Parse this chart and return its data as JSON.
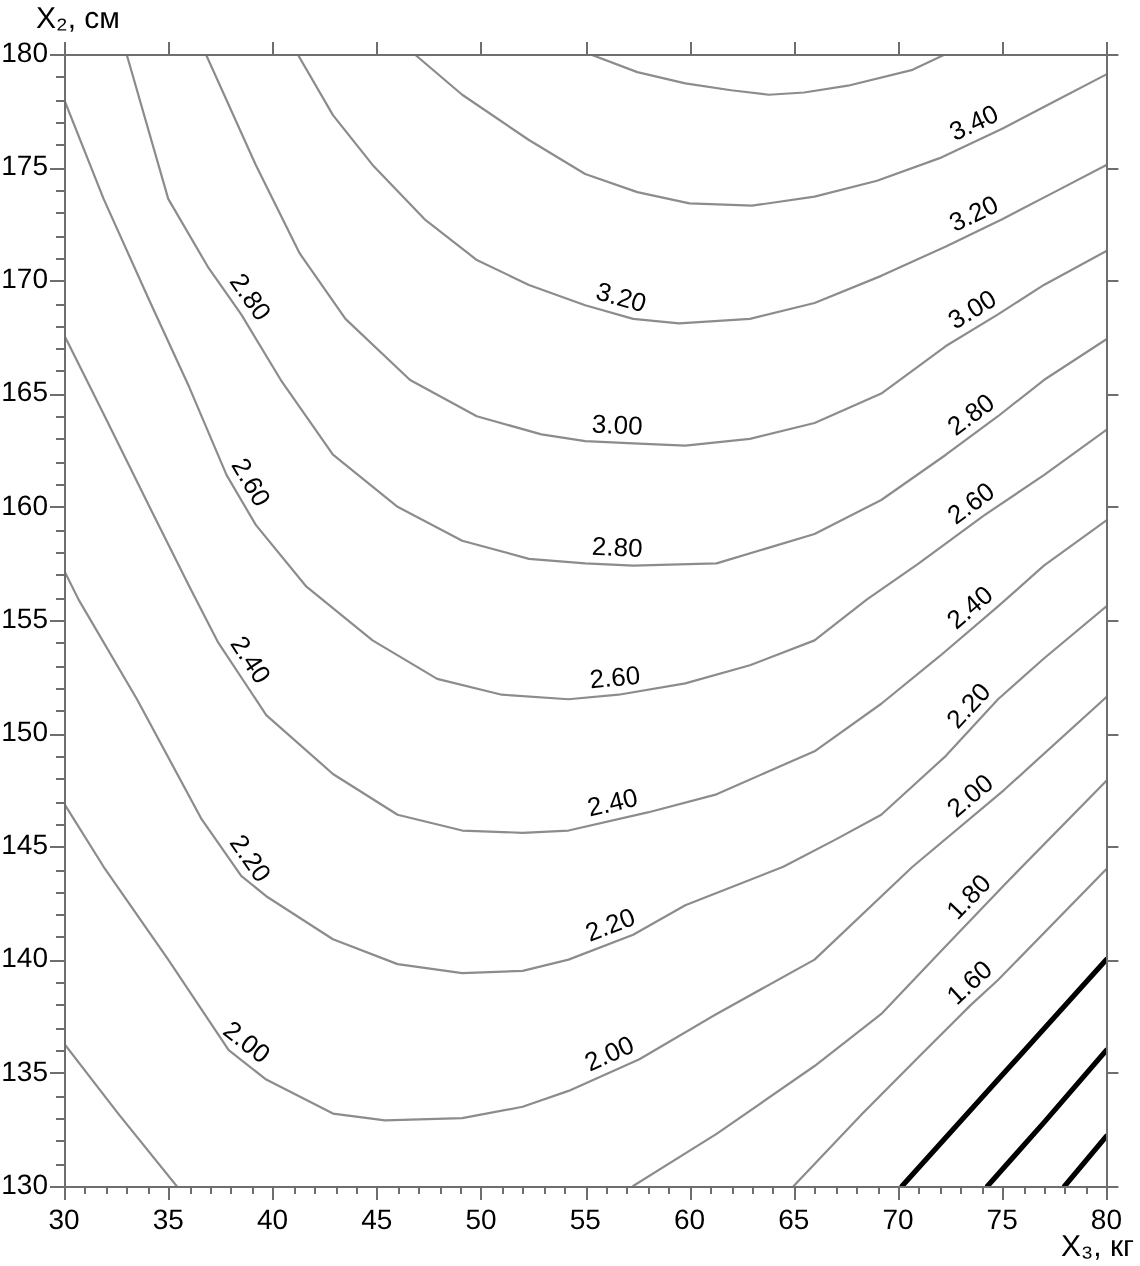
{
  "chart_data": {
    "type": "line",
    "xlabel": "X₃, кг",
    "ylabel": "X₂, см",
    "xlim": [
      30,
      80
    ],
    "ylim": [
      130,
      180
    ],
    "xticks": [
      30,
      {
        "value": 31,
        "label": null
      },
      {
        "value": 32,
        "label": null
      },
      {
        "value": 33,
        "label": null
      },
      {
        "value": 34,
        "label": null
      },
      35,
      {
        "value": 36,
        "label": null
      },
      {
        "value": 37,
        "label": null
      },
      {
        "value": 38,
        "label": null
      },
      {
        "value": 39,
        "label": null
      },
      40,
      {
        "value": 41,
        "label": null
      },
      {
        "value": 42,
        "label": null
      },
      {
        "value": 43,
        "label": null
      },
      {
        "value": 44,
        "label": null
      },
      45,
      {
        "value": 46,
        "label": null
      },
      {
        "value": 47,
        "label": null
      },
      {
        "value": 48,
        "label": null
      },
      {
        "value": 49,
        "label": null
      },
      50,
      {
        "value": 51,
        "label": null
      },
      {
        "value": 52,
        "label": null
      },
      {
        "value": 53,
        "label": null
      },
      {
        "value": 54,
        "label": null
      },
      55,
      {
        "value": 56,
        "label": null
      },
      {
        "value": 57,
        "label": null
      },
      {
        "value": 58,
        "label": null
      },
      {
        "value": 59,
        "label": null
      },
      60,
      {
        "value": 61,
        "label": null
      },
      {
        "value": 62,
        "label": null
      },
      {
        "value": 63,
        "label": null
      },
      {
        "value": 64,
        "label": null
      },
      65,
      {
        "value": 66,
        "label": null
      },
      {
        "value": 67,
        "label": null
      },
      {
        "value": 68,
        "label": null
      },
      {
        "value": 69,
        "label": null
      },
      70,
      {
        "value": 71,
        "label": null
      },
      {
        "value": 72,
        "label": null
      },
      {
        "value": 73,
        "label": null
      },
      {
        "value": 74,
        "label": null
      },
      75,
      {
        "value": 76,
        "label": null
      },
      {
        "value": 77,
        "label": null
      },
      {
        "value": 78,
        "label": null
      },
      {
        "value": 79,
        "label": null
      },
      80
    ],
    "yticks": [
      130,
      {
        "value": 131,
        "label": null
      },
      {
        "value": 132,
        "label": null
      },
      {
        "value": 133,
        "label": null
      },
      {
        "value": 134,
        "label": null
      },
      135,
      {
        "value": 136,
        "label": null
      },
      {
        "value": 137,
        "label": null
      },
      {
        "value": 138,
        "label": null
      },
      {
        "value": 139,
        "label": null
      },
      140,
      {
        "value": 141,
        "label": null
      },
      {
        "value": 142,
        "label": null
      },
      {
        "value": 143,
        "label": null
      },
      {
        "value": 144,
        "label": null
      },
      145,
      {
        "value": 146,
        "label": null
      },
      {
        "value": 147,
        "label": null
      },
      {
        "value": 148,
        "label": null
      },
      {
        "value": 149,
        "label": null
      },
      150,
      {
        "value": 151,
        "label": null
      },
      {
        "value": 152,
        "label": null
      },
      {
        "value": 153,
        "label": null
      },
      {
        "value": 154,
        "label": null
      },
      155,
      {
        "value": 156,
        "label": null
      },
      {
        "value": 157,
        "label": null
      },
      {
        "value": 158,
        "label": null
      },
      {
        "value": 159,
        "label": null
      },
      160,
      {
        "value": 161,
        "label": null
      },
      {
        "value": 162,
        "label": null
      },
      {
        "value": 163,
        "label": null
      },
      {
        "value": 164,
        "label": null
      },
      165,
      {
        "value": 166,
        "label": null
      },
      {
        "value": 167,
        "label": null
      },
      {
        "value": 168,
        "label": null
      },
      {
        "value": 169,
        "label": null
      },
      170,
      {
        "value": 171,
        "label": null
      },
      {
        "value": 172,
        "label": null
      },
      {
        "value": 173,
        "label": null
      },
      {
        "value": 174,
        "label": null
      },
      175,
      {
        "value": 176,
        "label": null
      },
      {
        "value": 177,
        "label": null
      },
      {
        "value": 178,
        "label": null
      },
      {
        "value": 179,
        "label": null
      },
      180
    ],
    "marker": "none",
    "series": [
      {
        "color": "#8c8c8c",
        "x": [
          55.2,
          57.5,
          59.8,
          62,
          63.8,
          65.5,
          67.6,
          70.7,
          72.3
        ],
        "values": [
          180,
          179.2,
          178.7,
          178.4,
          178.2,
          178.3,
          178.6,
          179.3,
          180
        ]
      },
      {
        "name": "3.40",
        "color": "#8c8c8c",
        "x": [
          46.8,
          49.1,
          52.3,
          55,
          57.5,
          60,
          63,
          66,
          69,
          72,
          75,
          77.5,
          80
        ],
        "values": [
          180,
          178.2,
          176.2,
          174.7,
          173.9,
          173.4,
          173.3,
          173.7,
          174.4,
          175.4,
          176.7,
          177.9,
          179.1
        ]
      },
      {
        "name": "3.20",
        "color": "#8c8c8c",
        "x": [
          41.2,
          42.9,
          44.8,
          47.3,
          49.8,
          52.3,
          55,
          57.3,
          59.5,
          62.9,
          66,
          69.2,
          72.3,
          75,
          77.5,
          80
        ],
        "values": [
          180,
          177.3,
          175.1,
          172.7,
          170.9,
          169.8,
          168.9,
          168.3,
          168.1,
          168.3,
          169,
          170.2,
          171.5,
          172.7,
          173.9,
          175.1
        ]
      },
      {
        "name": "3.00",
        "color": "#8c8c8c",
        "x": [
          36.8,
          39.2,
          41.3,
          43.5,
          46.6,
          49.8,
          52.9,
          55,
          57.3,
          59.8,
          62.9,
          66,
          69.2,
          72.3,
          74.8,
          77,
          80
        ],
        "values": [
          180,
          175.1,
          171.2,
          168.3,
          165.6,
          164,
          163.2,
          162.9,
          162.8,
          162.7,
          163,
          163.7,
          165,
          167.1,
          168.5,
          169.8,
          171.3
        ]
      },
      {
        "name": "2.80",
        "color": "#8c8c8c",
        "x": [
          33,
          35,
          36.9,
          38.5,
          40.4,
          42.9,
          46,
          49.1,
          52.3,
          55,
          57.3,
          61.3,
          66,
          69.2,
          72.3,
          74.8,
          77,
          80
        ],
        "values": [
          180,
          173.6,
          170.6,
          168.5,
          165.6,
          162.3,
          160,
          158.5,
          157.7,
          157.5,
          157.4,
          157.5,
          158.8,
          160.3,
          162.3,
          164,
          165.6,
          167.4
        ]
      },
      {
        "name": "2.60",
        "color": "#8c8c8c",
        "x": [
          30,
          31.9,
          34.1,
          36,
          37.8,
          39.2,
          41.6,
          44.8,
          47.9,
          51,
          54.2,
          56.6,
          59.8,
          62.9,
          66,
          68.5,
          71,
          74.1,
          77,
          80
        ],
        "values": [
          178,
          173.6,
          169.1,
          165.3,
          161.4,
          159.2,
          156.5,
          154.1,
          152.4,
          151.7,
          151.5,
          151.7,
          152.2,
          153,
          154.1,
          155.9,
          157.5,
          159.6,
          161.4,
          163.4
        ]
      },
      {
        "name": "2.40",
        "color": "#8c8c8c",
        "x": [
          30,
          31.9,
          34.1,
          36,
          37.4,
          39.7,
          42.9,
          46,
          49.1,
          52,
          54.2,
          58,
          61.3,
          64,
          66,
          69.2,
          72,
          74.8,
          77,
          80
        ],
        "values": [
          167.6,
          164.1,
          160,
          156.5,
          154,
          150.8,
          148.2,
          146.4,
          145.7,
          145.6,
          145.7,
          146.5,
          147.3,
          148.4,
          149.2,
          151.3,
          153.4,
          155.6,
          157.4,
          159.4
        ]
      },
      {
        "name": "2.20",
        "color": "#8c8c8c",
        "x": [
          30,
          30.7,
          33.5,
          36.6,
          38.5,
          39.7,
          42.9,
          46,
          49.1,
          52,
          54.2,
          57.3,
          59.8,
          62,
          64.5,
          67,
          69.2,
          72.3,
          74.8,
          77,
          80
        ],
        "values": [
          157.2,
          155.9,
          151.5,
          146.2,
          143.7,
          142.8,
          140.9,
          139.8,
          139.4,
          139.5,
          140,
          141.1,
          142.4,
          143.2,
          144.1,
          145.3,
          146.4,
          149,
          151.5,
          153.3,
          155.6
        ]
      },
      {
        "name": "2.00",
        "color": "#8c8c8c",
        "x": [
          30,
          31.9,
          35,
          37.9,
          39.7,
          42.9,
          45.4,
          49.1,
          52,
          54.2,
          57.6,
          61.3,
          66,
          70.7,
          75.1,
          80
        ],
        "values": [
          146.9,
          144.1,
          140,
          136,
          134.7,
          133.2,
          132.9,
          133,
          133.5,
          134.2,
          135.6,
          137.6,
          140,
          144.1,
          147.5,
          151.6
        ]
      },
      {
        "name": "1.80",
        "color": "#8c8c8c",
        "x": [
          30,
          32.6,
          35.4,
          46,
          57.3,
          61.3,
          66,
          69.2,
          72.3,
          75.1,
          80
        ],
        "values": [
          136.3,
          133.2,
          130,
          null,
          130,
          132.3,
          135.3,
          137.6,
          140.6,
          143.3,
          147.9
        ]
      },
      {
        "name": "1.60",
        "color": "#8c8c8c",
        "x": [
          65,
          68.3,
          71.1,
          73.5,
          74.8,
          80
        ],
        "values": [
          130,
          133.2,
          135.8,
          138,
          139.1,
          144
        ]
      },
      {
        "color": "#000000",
        "x": [
          70.2,
          75,
          80
        ],
        "values": [
          130,
          134.9,
          140
        ]
      },
      {
        "color": "#000000",
        "x": [
          74.3,
          77,
          80
        ],
        "values": [
          130,
          132.8,
          136
        ]
      },
      {
        "color": "#000000",
        "x": [
          78,
          80
        ],
        "values": [
          130,
          132.2
        ]
      }
    ]
  }
}
